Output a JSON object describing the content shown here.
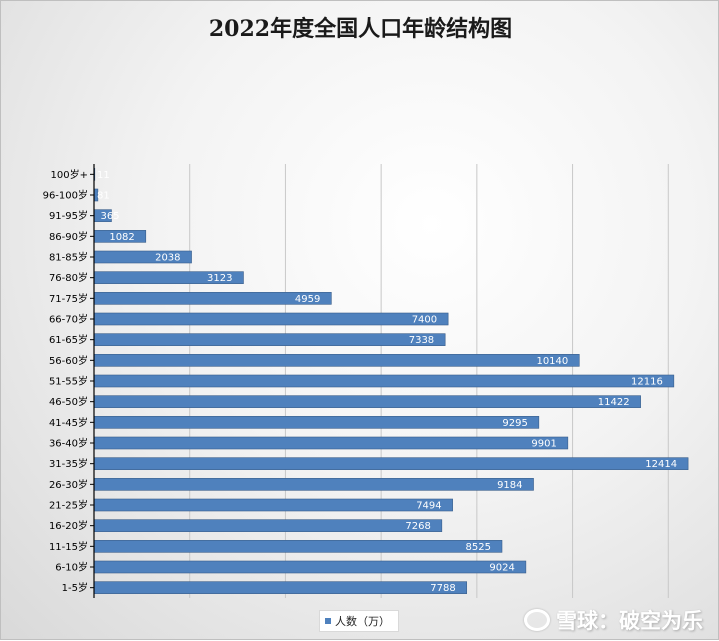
{
  "chart_data": {
    "type": "bar",
    "orientation": "horizontal",
    "title": "2022年度全国人口年龄结构图",
    "categories": [
      "1-5岁",
      "6-10岁",
      "11-15岁",
      "16-20岁",
      "21-25岁",
      "26-30岁",
      "31-35岁",
      "36-40岁",
      "41-45岁",
      "46-50岁",
      "51-55岁",
      "56-60岁",
      "61-65岁",
      "66-70岁",
      "71-75岁",
      "76-80岁",
      "81-85岁",
      "86-90岁",
      "91-95岁",
      "96-100岁",
      "100岁+"
    ],
    "series": [
      {
        "name": "人数（万）",
        "values": [
          7788,
          9024,
          8525,
          7268,
          7494,
          9184,
          12414,
          9901,
          9295,
          11422,
          12116,
          10140,
          7338,
          7400,
          4959,
          3123,
          2038,
          1082,
          365,
          81,
          11
        ],
        "labels": [
          "7788",
          "9024",
          "8525",
          "7268",
          "7494",
          "9184",
          "12414",
          "9901",
          "9295",
          "11422",
          "12116",
          "10140",
          "7338",
          "7400",
          "4959",
          "3123",
          "2038",
          "1082",
          "365",
          "81",
          "11"
        ]
      }
    ],
    "xlim": [
      0,
      14000
    ],
    "grid": true,
    "legend_position": "bottom",
    "bar_color": "#4f81bd",
    "data_label_color": "#ffffff"
  },
  "watermark": "雪球：破空为乐"
}
